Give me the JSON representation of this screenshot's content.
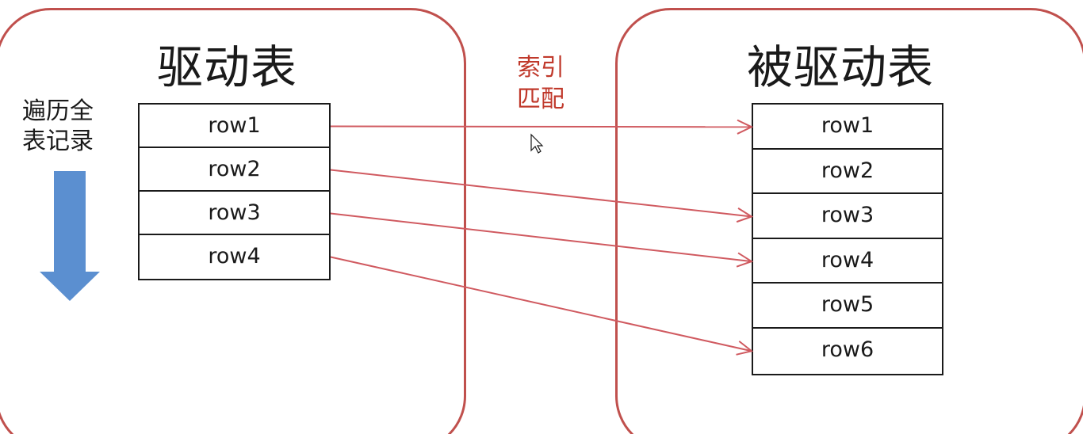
{
  "driving_table": {
    "title": "驱动表",
    "traverse_label": "遍历全表记录",
    "rows": [
      "row1",
      "row2",
      "row3",
      "row4"
    ]
  },
  "driven_table": {
    "title": "被驱动表",
    "rows": [
      "row1",
      "row2",
      "row3",
      "row4",
      "row5",
      "row6"
    ]
  },
  "index_label": "索引匹配",
  "connections": [
    {
      "from": "row1",
      "to": "row1"
    },
    {
      "from": "row2",
      "to": "row3"
    },
    {
      "from": "row3",
      "to": "row4"
    },
    {
      "from": "row4",
      "to": "row6"
    }
  ],
  "colors": {
    "panel_border": "#c0504d",
    "arrow_line": "#d05a60",
    "index_label": "#c0392b",
    "down_arrow": "#5b8fd0"
  },
  "icons": {
    "down_arrow": "down-arrow-icon",
    "cursor": "mouse-cursor-icon"
  }
}
